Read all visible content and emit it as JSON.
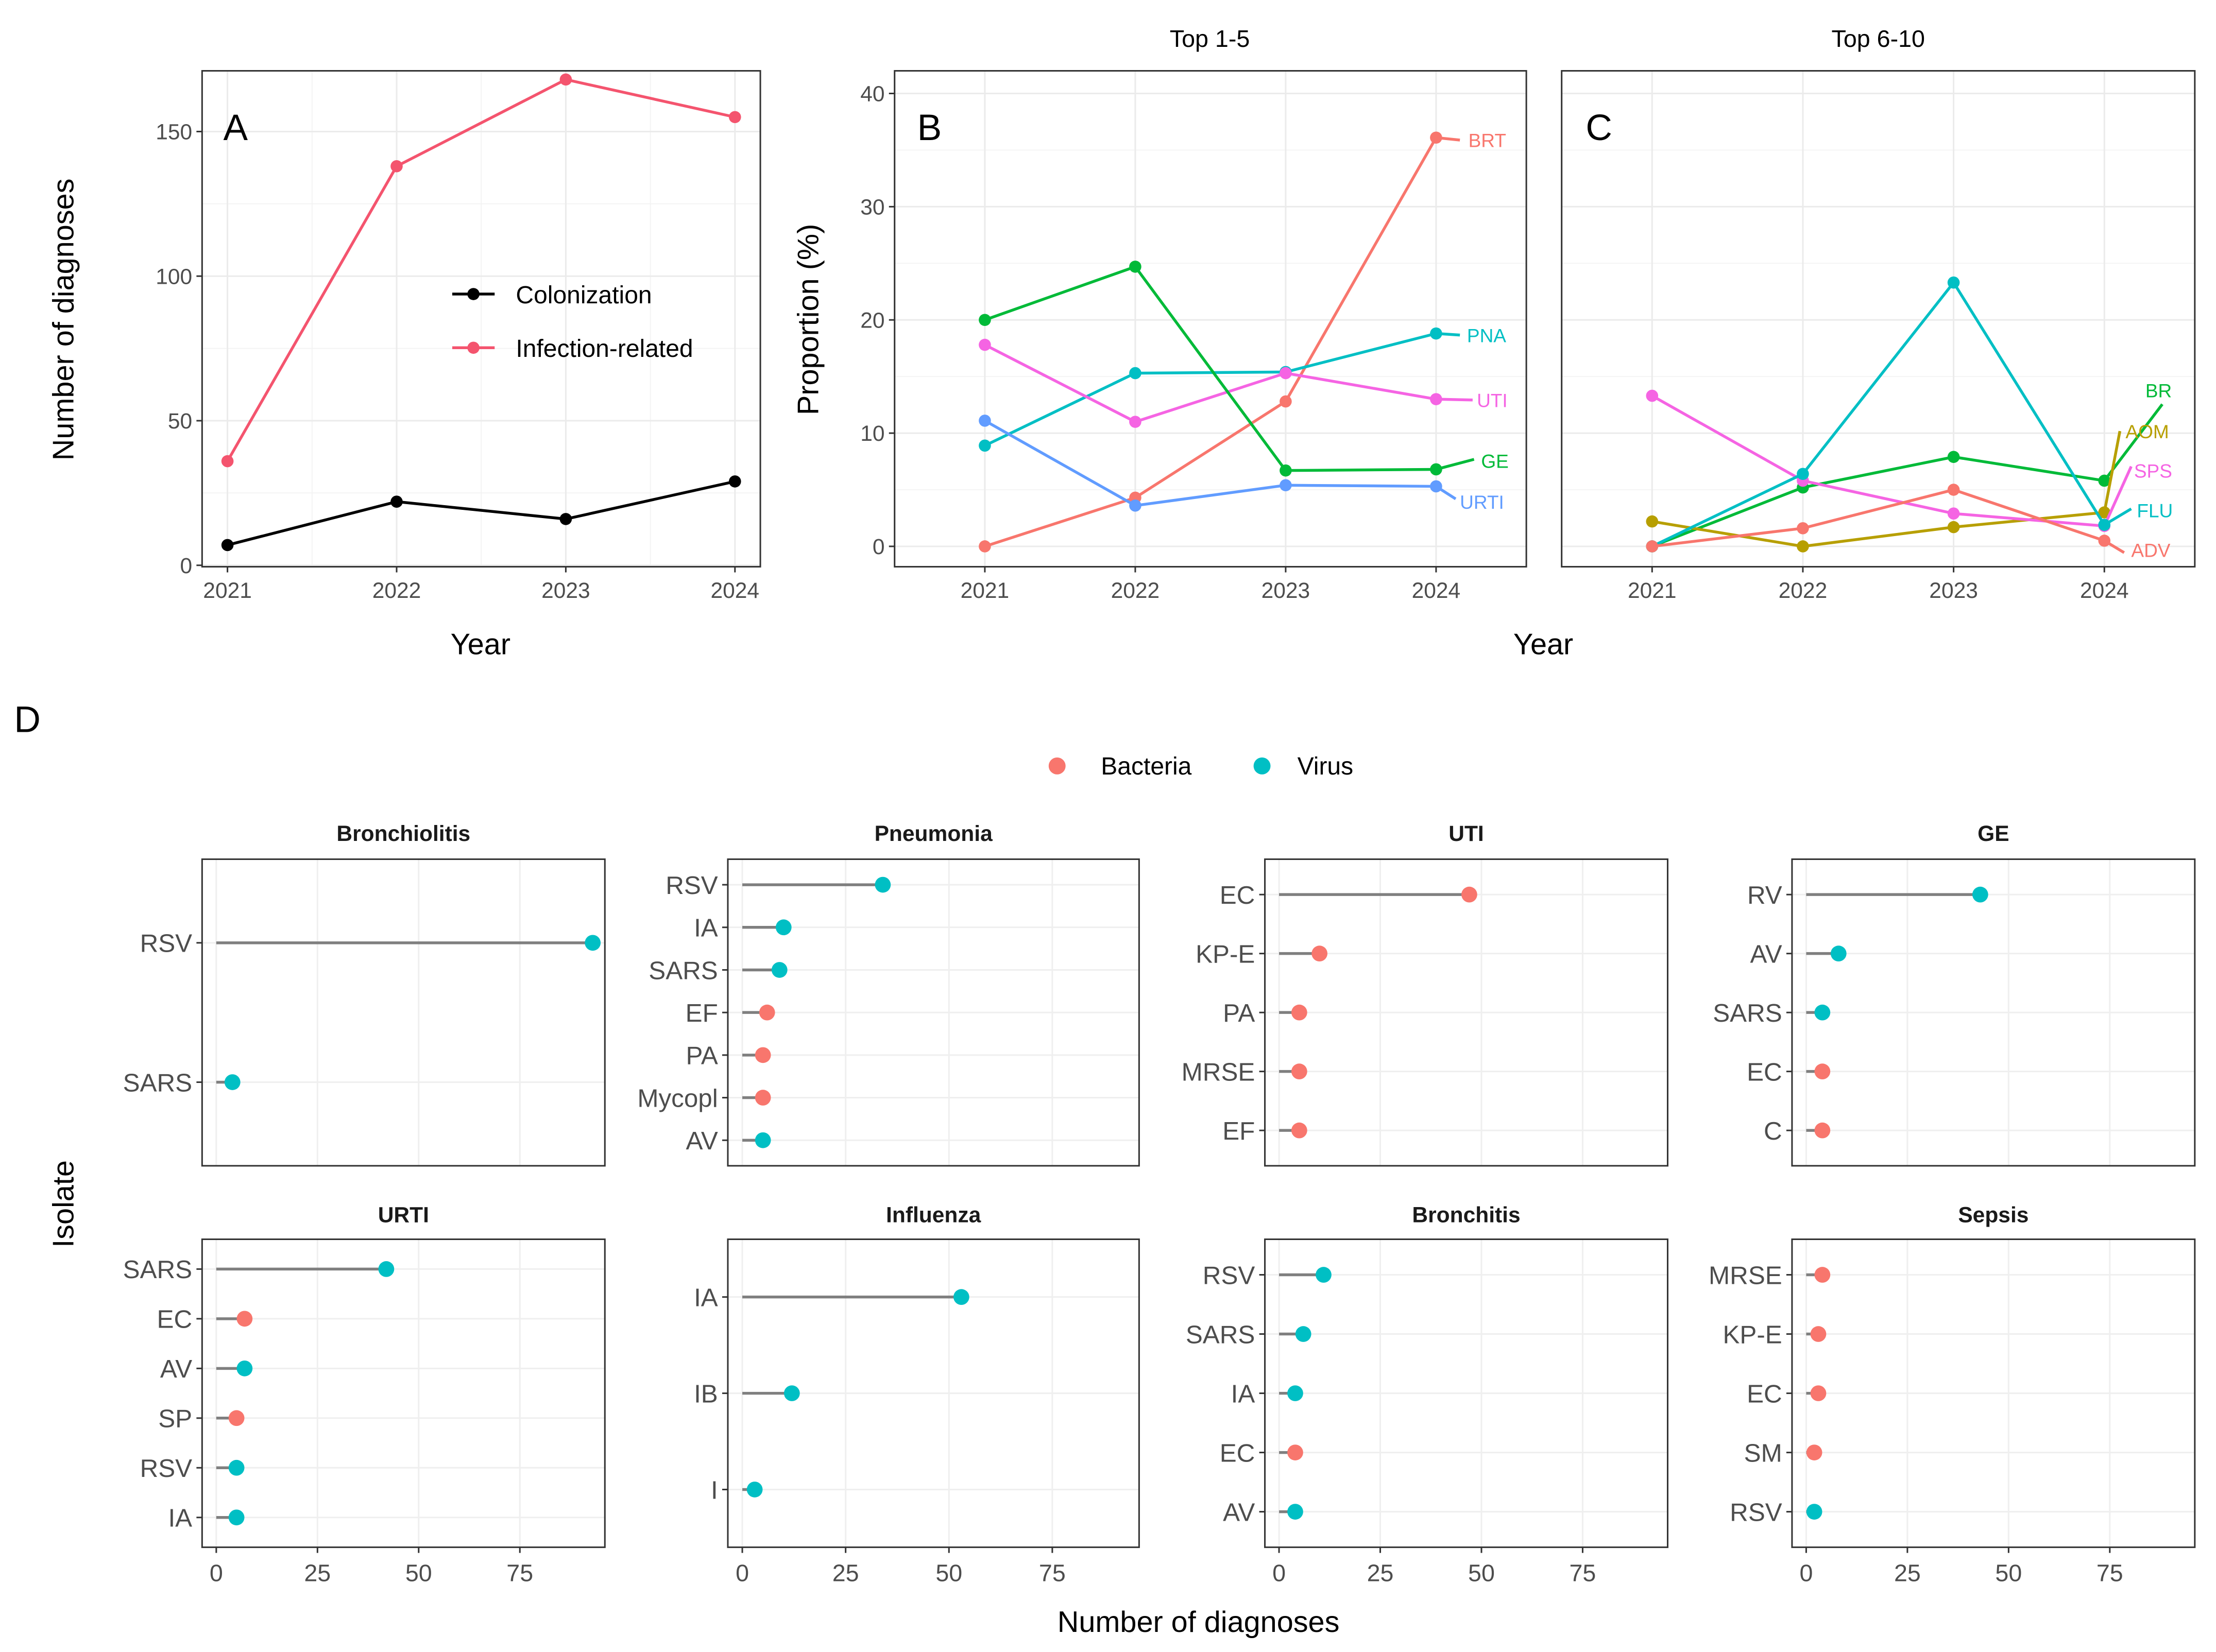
{
  "figure": {
    "panel_tags": {
      "A": "A",
      "B": "B",
      "C": "C",
      "D": "D"
    }
  },
  "colors": {
    "colonization": "#000000",
    "infection_related": "#F4546E",
    "bacteria": "#F8766D",
    "virus": "#00BFC4",
    "BRT": "#F8766D",
    "GE": "#00BA38",
    "PNA": "#00BFC4",
    "URTI": "#619CFF",
    "UTI": "#F564E3",
    "ADV": "#F8766D",
    "AOM": "#B79F00",
    "BR": "#00BA38",
    "FLU": "#00BFC4",
    "SPS": "#F564E3"
  },
  "chart_data": [
    {
      "id": "A",
      "type": "line",
      "title": "",
      "xlabel": "Year",
      "ylabel": "Number of diagnoses",
      "x": [
        2021,
        2022,
        2023,
        2024
      ],
      "x_ticks": [
        "2021",
        "2022",
        "2023",
        "2024"
      ],
      "y_ticks": [
        "0",
        "50",
        "100",
        "150"
      ],
      "y_tick_values": [
        0,
        50,
        100,
        150
      ],
      "ylim": [
        -0.5,
        171
      ],
      "grid": true,
      "legend": {
        "placement": "inside-right",
        "entries": [
          "Colonization",
          "Infection-related"
        ]
      },
      "series": [
        {
          "name": "Colonization",
          "color_key": "colonization",
          "values": [
            7,
            22,
            16,
            29
          ]
        },
        {
          "name": "Infection-related",
          "color_key": "infection_related",
          "values": [
            36,
            138,
            168,
            155
          ]
        }
      ]
    },
    {
      "id": "B",
      "type": "line",
      "title": "Top 1-5",
      "xlabel": "Year",
      "ylabel": "Proportion (%)",
      "x": [
        2021,
        2022,
        2023,
        2024
      ],
      "x_ticks": [
        "2021",
        "2022",
        "2023",
        "2024"
      ],
      "y_ticks": [
        "0",
        "10",
        "20",
        "30",
        "40"
      ],
      "y_tick_values": [
        0,
        10,
        20,
        30,
        40
      ],
      "ylim": [
        -1.8,
        42
      ],
      "grid": true,
      "legend": {
        "placement": "direct-labels-right"
      },
      "series": [
        {
          "name": "BRT",
          "values": [
            0,
            4.3,
            12.8,
            36.1
          ]
        },
        {
          "name": "PNA",
          "values": [
            8.9,
            15.3,
            15.4,
            18.8
          ]
        },
        {
          "name": "UTI",
          "values": [
            17.8,
            11.0,
            15.3,
            13.0
          ]
        },
        {
          "name": "GE",
          "values": [
            20.0,
            24.7,
            6.7,
            6.8
          ]
        },
        {
          "name": "URTI",
          "values": [
            11.1,
            3.6,
            5.4,
            5.3
          ]
        }
      ]
    },
    {
      "id": "C",
      "type": "line",
      "title": "Top 6-10",
      "xlabel": "Year",
      "ylabel": "Proportion (%)",
      "x": [
        2021,
        2022,
        2023,
        2024
      ],
      "x_ticks": [
        "2021",
        "2022",
        "2023",
        "2024"
      ],
      "y_ticks": [
        "0",
        "10",
        "20",
        "30",
        "40"
      ],
      "y_tick_values": [
        0,
        10,
        20,
        30,
        40
      ],
      "ylim": [
        -1.8,
        42
      ],
      "grid": true,
      "legend": {
        "placement": "direct-labels-right"
      },
      "series": [
        {
          "name": "BR",
          "values": [
            0,
            5.2,
            7.9,
            5.8
          ]
        },
        {
          "name": "AOM",
          "values": [
            2.2,
            0,
            1.7,
            3.0
          ]
        },
        {
          "name": "SPS",
          "values": [
            13.3,
            5.8,
            2.9,
            1.8
          ]
        },
        {
          "name": "FLU",
          "values": [
            0,
            6.4,
            23.3,
            1.9
          ]
        },
        {
          "name": "ADV",
          "values": [
            0,
            1.6,
            5.0,
            0.5
          ]
        }
      ]
    },
    {
      "id": "D",
      "type": "scatter",
      "subtype": "lollipop-facets",
      "xlabel": "Number of diagnoses",
      "ylabel": "Isolate",
      "x_ticks": [
        "0",
        "25",
        "50",
        "75"
      ],
      "x_tick_values": [
        0,
        25,
        50,
        75
      ],
      "xlim": [
        -3.5,
        96
      ],
      "grid": true,
      "legend": {
        "placement": "top-center",
        "entries": [
          "Bacteria",
          "Virus"
        ]
      },
      "facets": [
        {
          "title": "Bronchiolitis",
          "items": [
            {
              "isolate": "RSV",
              "value": 93,
              "type": "Virus"
            },
            {
              "isolate": "SARS",
              "value": 4,
              "type": "Virus"
            }
          ]
        },
        {
          "title": "Pneumonia",
          "items": [
            {
              "isolate": "RSV",
              "value": 34,
              "type": "Virus"
            },
            {
              "isolate": "IA",
              "value": 10,
              "type": "Virus"
            },
            {
              "isolate": "SARS",
              "value": 9,
              "type": "Virus"
            },
            {
              "isolate": "EF",
              "value": 6,
              "type": "Bacteria"
            },
            {
              "isolate": "PA",
              "value": 5,
              "type": "Bacteria"
            },
            {
              "isolate": "Mycopl",
              "value": 5,
              "type": "Bacteria"
            },
            {
              "isolate": "AV",
              "value": 5,
              "type": "Virus"
            }
          ]
        },
        {
          "title": "UTI",
          "items": [
            {
              "isolate": "EC",
              "value": 47,
              "type": "Bacteria"
            },
            {
              "isolate": "KP-E",
              "value": 10,
              "type": "Bacteria"
            },
            {
              "isolate": "PA",
              "value": 5,
              "type": "Bacteria"
            },
            {
              "isolate": "MRSE",
              "value": 5,
              "type": "Bacteria"
            },
            {
              "isolate": "EF",
              "value": 5,
              "type": "Bacteria"
            }
          ]
        },
        {
          "title": "GE",
          "items": [
            {
              "isolate": "RV",
              "value": 43,
              "type": "Virus"
            },
            {
              "isolate": "AV",
              "value": 8,
              "type": "Virus"
            },
            {
              "isolate": "SARS",
              "value": 4,
              "type": "Virus"
            },
            {
              "isolate": "EC",
              "value": 4,
              "type": "Bacteria"
            },
            {
              "isolate": "C",
              "value": 4,
              "type": "Bacteria"
            }
          ]
        },
        {
          "title": "URTI",
          "items": [
            {
              "isolate": "SARS",
              "value": 42,
              "type": "Virus"
            },
            {
              "isolate": "EC",
              "value": 7,
              "type": "Bacteria"
            },
            {
              "isolate": "AV",
              "value": 7,
              "type": "Virus"
            },
            {
              "isolate": "SP",
              "value": 5,
              "type": "Bacteria"
            },
            {
              "isolate": "RSV",
              "value": 5,
              "type": "Virus"
            },
            {
              "isolate": "IA",
              "value": 5,
              "type": "Virus"
            }
          ]
        },
        {
          "title": "Influenza",
          "items": [
            {
              "isolate": "IA",
              "value": 53,
              "type": "Virus"
            },
            {
              "isolate": "IB",
              "value": 12,
              "type": "Virus"
            },
            {
              "isolate": "I",
              "value": 3,
              "type": "Virus"
            }
          ]
        },
        {
          "title": "Bronchitis",
          "items": [
            {
              "isolate": "RSV",
              "value": 11,
              "type": "Virus"
            },
            {
              "isolate": "SARS",
              "value": 6,
              "type": "Virus"
            },
            {
              "isolate": "IA",
              "value": 4,
              "type": "Virus"
            },
            {
              "isolate": "EC",
              "value": 4,
              "type": "Bacteria"
            },
            {
              "isolate": "AV",
              "value": 4,
              "type": "Virus"
            }
          ]
        },
        {
          "title": "Sepsis",
          "items": [
            {
              "isolate": "MRSE",
              "value": 4,
              "type": "Bacteria"
            },
            {
              "isolate": "KP-E",
              "value": 3,
              "type": "Bacteria"
            },
            {
              "isolate": "EC",
              "value": 3,
              "type": "Bacteria"
            },
            {
              "isolate": "SM",
              "value": 2,
              "type": "Bacteria"
            },
            {
              "isolate": "RSV",
              "value": 2,
              "type": "Virus"
            }
          ]
        }
      ]
    }
  ]
}
